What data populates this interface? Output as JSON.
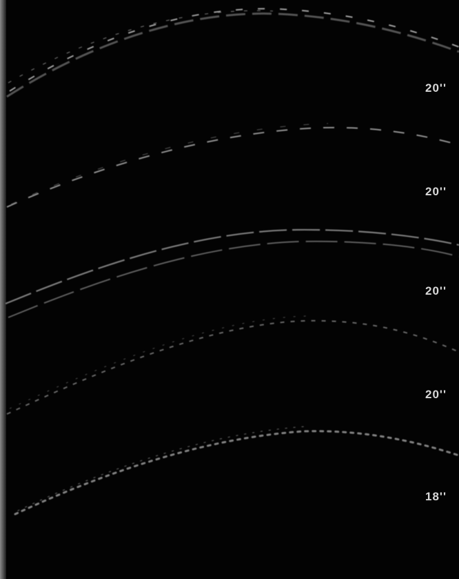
{
  "labels": {
    "chain_1_length": "20''",
    "chain_2_length": "20''",
    "chain_3_length": "20''",
    "chain_4_length": "20''",
    "chain_5_length": "18''"
  },
  "colors": {
    "background": "#030303",
    "chain_highlight": "#b5b5b5",
    "label": "#d8d8d8"
  }
}
